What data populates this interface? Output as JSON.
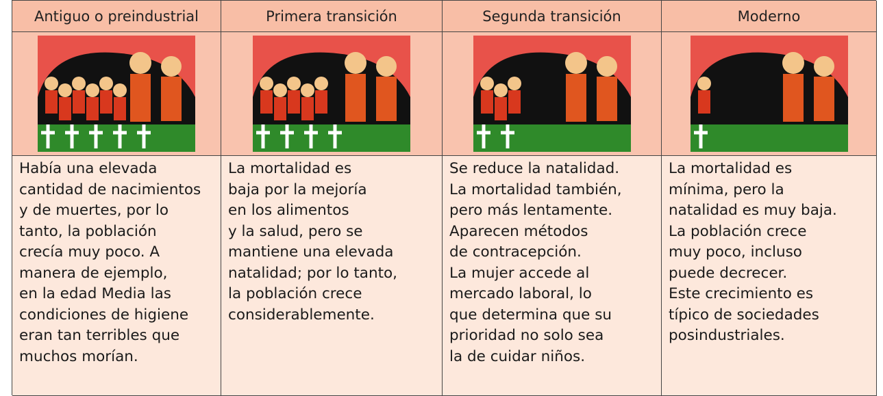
{
  "table": {
    "columns": [
      {
        "header": "Antiguo o preindustrial",
        "lines": [
          "Había una elevada",
          "cantidad de nacimientos",
          "y de muertes, por lo",
          "tanto, la población",
          "crecía muy poco. A",
          "manera de ejemplo,",
          "en la edad Media las",
          "condiciones de higiene",
          "eran tan terribles que",
          "muchos morían."
        ]
      },
      {
        "header": "Primera transición",
        "lines": [
          "La mortalidad es",
          "baja por la mejoría",
          "en los alimentos",
          "y la salud, pero se",
          "mantiene una elevada",
          "natalidad; por lo tanto,",
          "la población crece",
          "considerablemente."
        ]
      },
      {
        "header": "Segunda transición",
        "lines": [
          "Se reduce la natalidad.",
          "La mortalidad también,",
          "pero más lentamente.",
          "Aparecen métodos",
          "de contracepción.",
          "La mujer accede al",
          "mercado laboral, lo",
          "que determina que su",
          "prioridad no solo sea",
          "la de cuidar niños."
        ]
      },
      {
        "header": "Moderno",
        "lines": [
          "La mortalidad es",
          "mínima, pero la",
          "natalidad es muy baja.",
          "La población crece",
          "muy poco, incluso",
          "puede decrecer.",
          "Este crecimiento es",
          "típico de sociedades",
          "posindustriales."
        ]
      }
    ]
  }
}
